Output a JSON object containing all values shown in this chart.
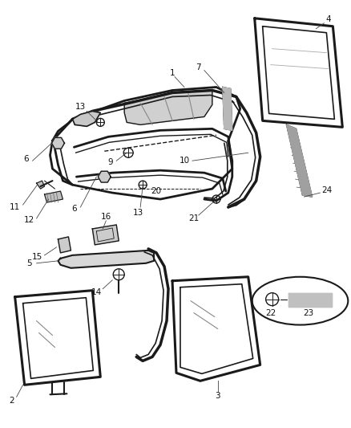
{
  "bg_color": "#ffffff",
  "line_color": "#1a1a1a",
  "figsize": [
    4.38,
    5.33
  ],
  "dpi": 100
}
